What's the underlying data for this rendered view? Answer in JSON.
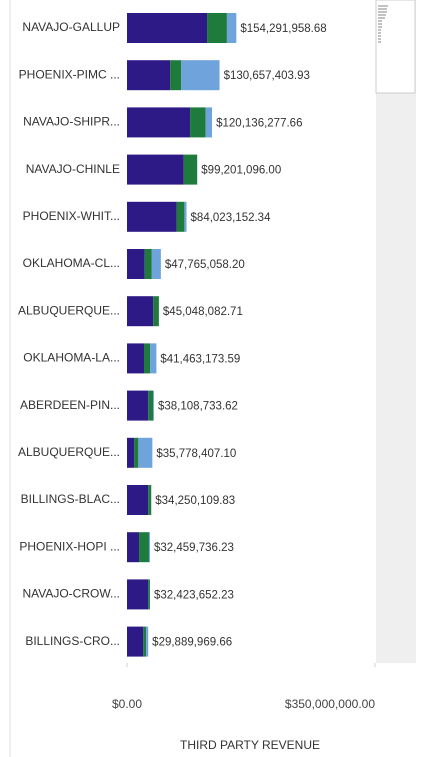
{
  "chart_data": {
    "type": "bar",
    "orientation": "horizontal",
    "stacked": true,
    "x_label": "THIRD PARTY REVENUE",
    "categories": [
      "NAVAJO-GALLUP",
      "PHOENIX-PIMC ...",
      "NAVAJO-SHIPR...",
      "NAVAJO-CHINLE",
      "PHOENIX-WHIT...",
      "OKLAHOMA-CL...",
      "ALBUQUERQUE...",
      "OKLAHOMA-LA...",
      "ABERDEEN-PIN...",
      "ALBUQUERQUE...",
      "BILLINGS-BLAC...",
      "PHOENIX-HOPI ...",
      "NAVAJO-CROW...",
      "BILLINGS-CRO..."
    ],
    "series": [
      {
        "color": "#2e1a87",
        "values": [
          113000000,
          61000000,
          89000000,
          80000000,
          70000000,
          25000000,
          37000000,
          24000000,
          30000000,
          10000000,
          30000000,
          17000000,
          30000000,
          23000000
        ]
      },
      {
        "color": "#1e7b3c",
        "values": [
          28000000,
          15600000,
          22000000,
          19000000,
          11000000,
          10000000,
          8000000,
          8500000,
          7000000,
          6000000,
          4200000,
          14000000,
          2400000,
          4000000
        ]
      },
      {
        "color": "#6fa3dc",
        "values": [
          13300000,
          54000000,
          9000000,
          200000,
          3000000,
          12800000,
          0,
          9000000,
          1100000,
          19800000,
          0,
          1500000,
          0,
          2900000
        ]
      }
    ],
    "totals": [
      154291958.68,
      130657403.93,
      120136277.66,
      99201096.0,
      84023152.34,
      47765058.2,
      45048082.71,
      41463173.59,
      38108733.62,
      35778407.1,
      34250109.83,
      32459736.23,
      32423652.23,
      29889969.66
    ],
    "total_labels": [
      "$154,291,958.68",
      "$130,657,403.93",
      "$120,136,277.66",
      "$99,201,096.00",
      "$84,023,152.34",
      "$47,765,058.20",
      "$45,048,082.71",
      "$41,463,173.59",
      "$38,108,733.62",
      "$35,778,407.10",
      "$34,250,109.83",
      "$32,459,736.23",
      "$32,423,652.23",
      "$29,889,969.66"
    ],
    "xlim": [
      0,
      350000000
    ],
    "xticks": [
      {
        "value": 0,
        "label": "$0.00"
      },
      {
        "value": 350000000,
        "label": "$350,000,000.00"
      }
    ]
  }
}
